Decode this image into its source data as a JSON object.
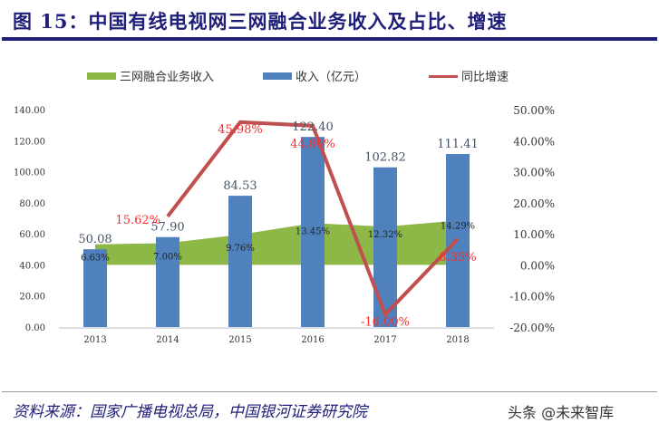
{
  "title": "图 15：中国有线电视网三网融合业务收入及占比、增速",
  "source": "资料来源：国家广播电视总局，中国银河证券研究院",
  "watermark": "头条 @未来智库",
  "chart_data": {
    "type": "bar+line+area",
    "categories": [
      "2013",
      "2014",
      "2015",
      "2016",
      "2017",
      "2018"
    ],
    "legend_position": "top",
    "y_left": {
      "ylim": [
        0,
        140
      ],
      "ticks": [
        "0.00",
        "20.00",
        "40.00",
        "60.00",
        "80.00",
        "100.00",
        "120.00",
        "140.00"
      ]
    },
    "y_right": {
      "ylim": [
        -20,
        50
      ],
      "ticks": [
        "-20.00%",
        "-10.00%",
        "0.00%",
        "10.00%",
        "20.00%",
        "30.00%",
        "40.00%",
        "50.00%"
      ]
    },
    "series": [
      {
        "name": "三网融合业务收入",
        "type": "area",
        "axis": "right",
        "color": "#8db848",
        "values": [
          6.63,
          7.0,
          9.76,
          13.45,
          12.32,
          14.29
        ],
        "labels": [
          "6.63%",
          "7.00%",
          "9.76%",
          "13.45%",
          "12.32%",
          "14.29%"
        ]
      },
      {
        "name": "收入（亿元）",
        "type": "bar",
        "axis": "left",
        "color": "#4f81bd",
        "values": [
          50.08,
          57.9,
          84.53,
          122.4,
          102.82,
          111.41
        ],
        "labels": [
          "50.08",
          "57.90",
          "84.53",
          "122.40",
          "102.82",
          "111.41"
        ]
      },
      {
        "name": "同比增速",
        "type": "line",
        "axis": "right",
        "color": "#c0504d",
        "values": [
          null,
          15.62,
          45.98,
          44.8,
          -16.0,
          8.35
        ],
        "labels": [
          "",
          "15.62%",
          "45.98%",
          "44.80%",
          "-16.00%",
          "8.35%"
        ]
      }
    ]
  }
}
